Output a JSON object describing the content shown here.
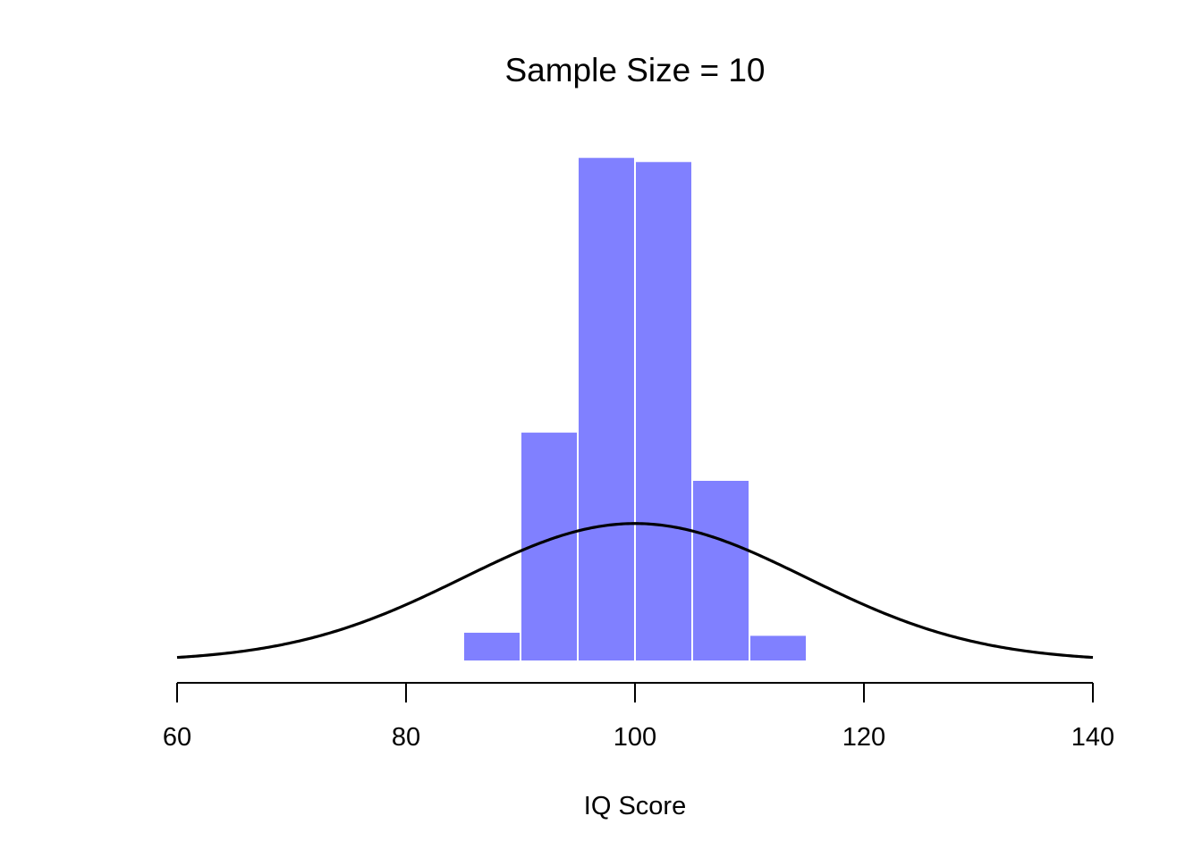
{
  "chart_data": {
    "type": "bar",
    "title": "Sample Size = 10",
    "xlabel": "IQ Score",
    "ylabel": "",
    "xlim": [
      60,
      140
    ],
    "xticks": [
      "60",
      "80",
      "100",
      "120",
      "140"
    ],
    "bin_width": 5,
    "bins": [
      {
        "start": 85,
        "end": 90,
        "density": 0.0057
      },
      {
        "start": 90,
        "end": 95,
        "density": 0.0443
      },
      {
        "start": 95,
        "end": 100,
        "density": 0.0973
      },
      {
        "start": 100,
        "end": 105,
        "density": 0.0965
      },
      {
        "start": 105,
        "end": 110,
        "density": 0.035
      },
      {
        "start": 110,
        "end": 115,
        "density": 0.0051
      }
    ],
    "curve": {
      "type": "normal",
      "mean": 100,
      "sd": 15
    },
    "ylim": [
      0,
      0.1
    ],
    "grid": false,
    "colors": {
      "bars": "#8080ff",
      "bar_border": "#ffffff",
      "curve": "#000000"
    }
  }
}
